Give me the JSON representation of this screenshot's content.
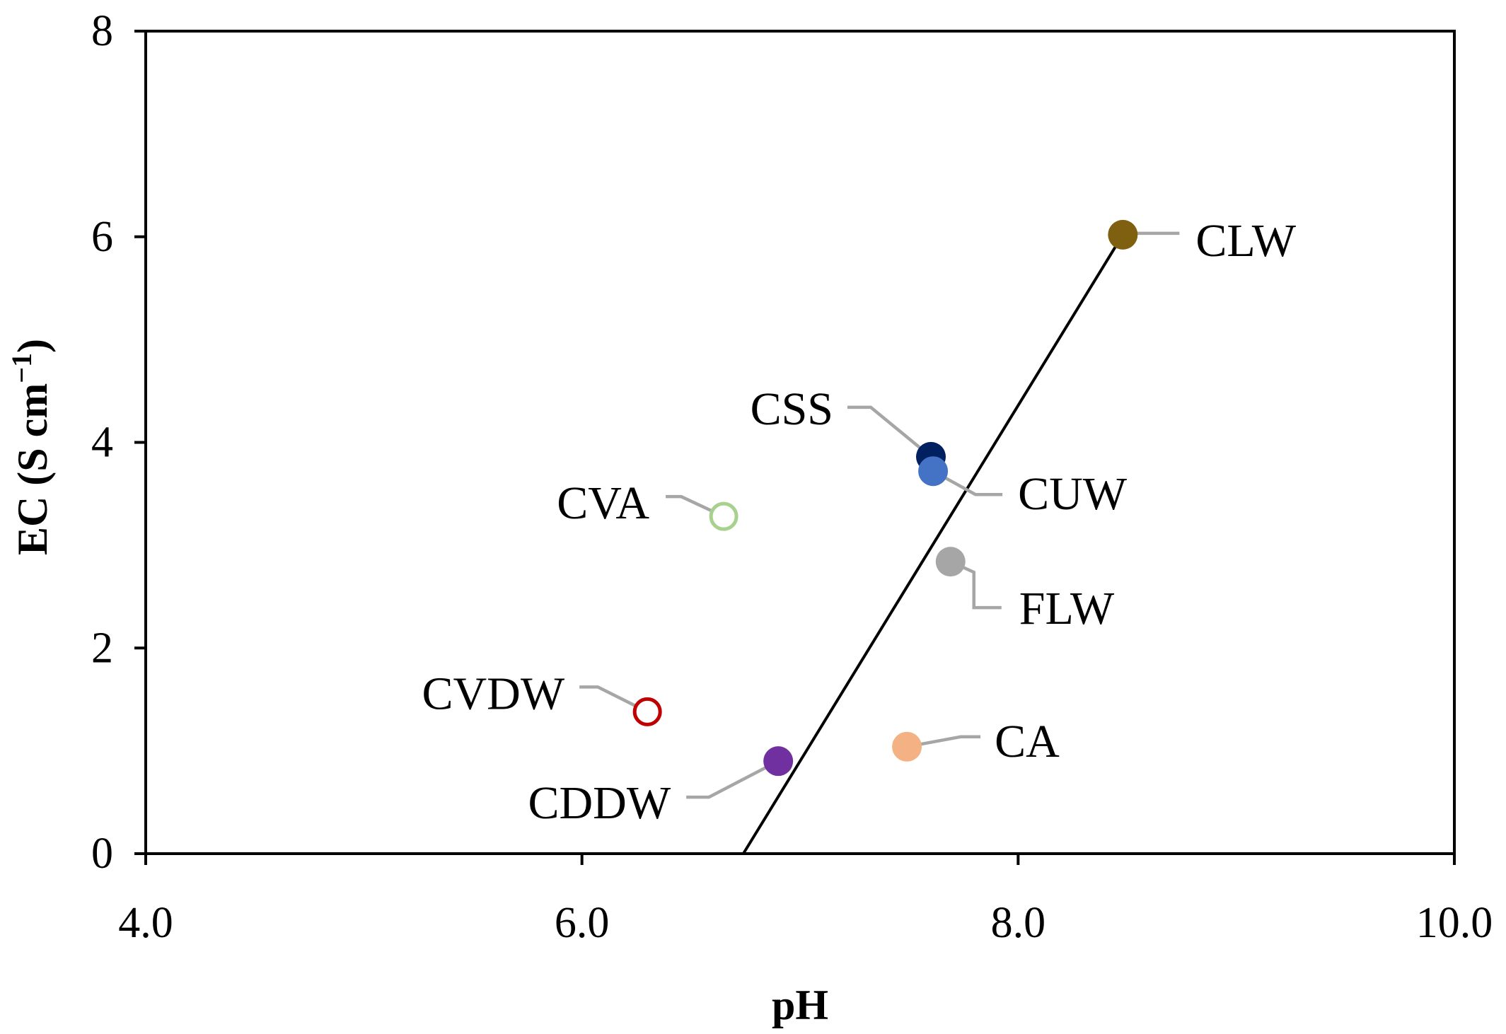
{
  "chart_data": {
    "type": "scatter",
    "xlabel": "pH",
    "ylabel": "EC (S cm",
    "ylabel_sup": "−1",
    "ylabel_close": ")",
    "xlim": [
      4.0,
      10.0
    ],
    "ylim": [
      0,
      8
    ],
    "xticks": [
      "4.0",
      "6.0",
      "8.0",
      "10.0"
    ],
    "yticks": [
      "0",
      "2",
      "4",
      "6",
      "8"
    ],
    "grid": false,
    "points": [
      {
        "name": "CLW",
        "x": 8.48,
        "y": 6.02,
        "color": "#7f5f10",
        "filled": true
      },
      {
        "name": "CSS",
        "x": 7.6,
        "y": 3.86,
        "color": "#002060",
        "filled": true
      },
      {
        "name": "CUW",
        "x": 7.61,
        "y": 3.72,
        "color": "#4472c4",
        "filled": true
      },
      {
        "name": "CVA",
        "x": 6.65,
        "y": 3.28,
        "color": "#a9d18e",
        "filled": false
      },
      {
        "name": "FLW",
        "x": 7.69,
        "y": 2.84,
        "color": "#a6a6a6",
        "filled": true
      },
      {
        "name": "CVDW",
        "x": 6.3,
        "y": 1.38,
        "color": "#c00000",
        "filled": false
      },
      {
        "name": "CA",
        "x": 7.49,
        "y": 1.04,
        "color": "#f4b183",
        "filled": true
      },
      {
        "name": "CDDW",
        "x": 6.9,
        "y": 0.9,
        "color": "#7030a0",
        "filled": true
      }
    ],
    "trendline": {
      "x": [
        6.74,
        8.48
      ],
      "y": [
        0,
        6.02
      ]
    }
  }
}
